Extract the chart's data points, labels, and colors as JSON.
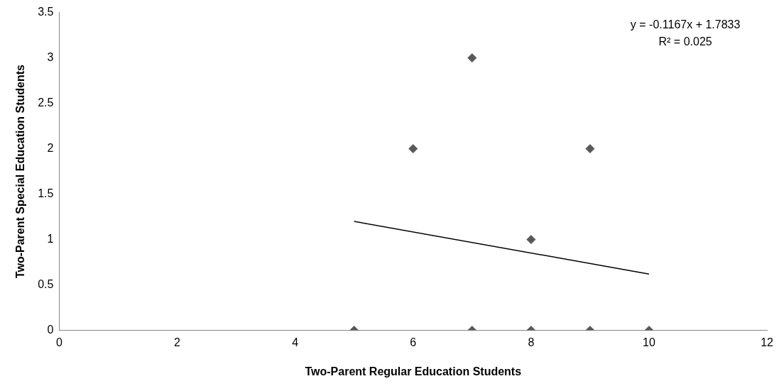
{
  "chart_data": {
    "type": "scatter",
    "xlabel": "Two-Parent Regular Education Students",
    "ylabel": "Two-Parent Special Education Students",
    "series": [
      {
        "marker": "diamond",
        "color": "#595959",
        "x": [
          5,
          6,
          7,
          7,
          8,
          8,
          9,
          9,
          10
        ],
        "values": [
          0,
          2,
          3,
          0,
          1,
          0,
          2,
          0,
          0
        ]
      },
      {
        "type": "line",
        "marker": "none",
        "color": "#000000",
        "x": [
          5,
          10
        ],
        "values": [
          1.2,
          0.62
        ]
      }
    ],
    "xlim": [
      0,
      12
    ],
    "xticks": [
      0,
      2,
      4,
      6,
      8,
      10,
      12
    ],
    "ylim": [
      0,
      3.5
    ],
    "yticks": [
      0,
      0.5,
      1,
      1.5,
      2,
      2.5,
      3,
      3.5
    ],
    "annotations": [
      "y = -0.1167x + 1.7833",
      "R² = 0.025"
    ],
    "grid": false,
    "legend": false
  }
}
